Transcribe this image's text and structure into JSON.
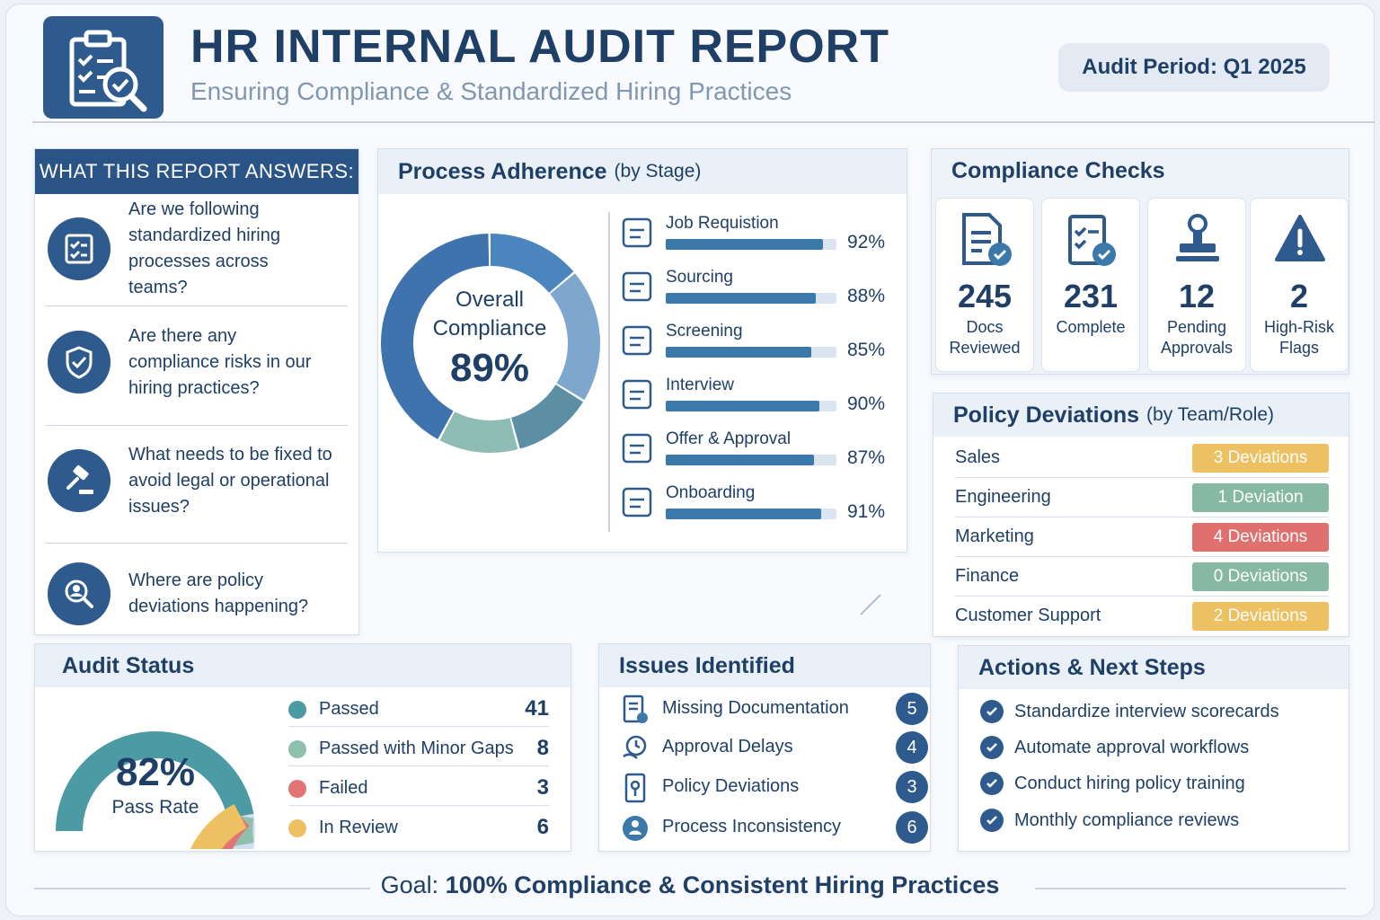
{
  "header": {
    "title": "HR INTERNAL AUDIT REPORT",
    "subtitle": "Ensuring Compliance & Standardized Hiring Practices",
    "period": "Audit Period: Q1 2025"
  },
  "questions": {
    "heading": "WHAT THIS REPORT ANSWERS:",
    "items": [
      {
        "text": "Are we following standardized hiring processes across teams?",
        "icon": "checklist-icon"
      },
      {
        "text": "Are there any compliance risks in our hiring practices?",
        "icon": "shield-check-icon"
      },
      {
        "text": "What needs to be fixed to avoid legal or operational issues?",
        "icon": "gavel-icon"
      },
      {
        "text": "Where are policy deviations happening?",
        "icon": "magnifier-person-icon"
      }
    ]
  },
  "process": {
    "title": "Process Adherence",
    "subtitle": "(by Stage)",
    "overall_label_1": "Overall",
    "overall_label_2": "Compliance",
    "overall_value": "89%"
  },
  "checks": {
    "title": "Compliance Checks",
    "items": [
      {
        "value": "245",
        "label_1": "Docs",
        "label_2": "Reviewed",
        "icon": "document-check-icon"
      },
      {
        "value": "231",
        "label_1": "Complete",
        "label_2": "",
        "icon": "checklist-check-icon"
      },
      {
        "value": "12",
        "label_1": "Pending",
        "label_2": "Approvals",
        "icon": "stamp-icon"
      },
      {
        "value": "2",
        "label_1": "High-Risk",
        "label_2": "Flags",
        "icon": "warning-icon"
      }
    ]
  },
  "deviations": {
    "title": "Policy Deviations",
    "subtitle": "(by Team/Role)",
    "rows": [
      {
        "team": "Sales",
        "badge": "3 Deviations",
        "color": "#edc062"
      },
      {
        "team": "Engineering",
        "badge": "1 Deviation",
        "color": "#87b8a4"
      },
      {
        "team": "Marketing",
        "badge": "4 Deviations",
        "color": "#e0706e"
      },
      {
        "team": "Finance",
        "badge": "0 Deviations",
        "color": "#87b8a4"
      },
      {
        "team": "Customer Support",
        "badge": "2 Deviations",
        "color": "#edc062"
      }
    ]
  },
  "audit_status": {
    "title": "Audit Status",
    "rate_value": "82%",
    "rate_label": "Pass Rate"
  },
  "issues": {
    "title": "Issues Identified",
    "items": [
      {
        "label": "Missing Documentation",
        "count": "5",
        "icon": "document-list-icon"
      },
      {
        "label": "Approval Delays",
        "count": "4",
        "icon": "clock-hand-icon"
      },
      {
        "label": "Policy Deviations",
        "count": "3",
        "icon": "policy-icon"
      },
      {
        "label": "Process Inconsistency",
        "count": "6",
        "icon": "people-gear-icon"
      }
    ]
  },
  "actions": {
    "title": "Actions & Next Steps",
    "items": [
      "Standardize interview scorecards",
      "Automate approval workflows",
      "Conduct hiring policy training",
      "Monthly compliance reviews"
    ]
  },
  "footer": {
    "goal_prefix": "Goal: ",
    "goal_text": "100% Compliance & Consistent Hiring Practices"
  },
  "chart_data": [
    {
      "type": "bar",
      "title": "Process Adherence (by Stage)",
      "categories": [
        "Job Requistion",
        "Sourcing",
        "Screening",
        "Interview",
        "Offer & Approval",
        "Onboarding"
      ],
      "values": [
        92,
        88,
        85,
        90,
        87,
        91
      ],
      "value_labels": [
        "92%",
        "88%",
        "85%",
        "90%",
        "87%",
        "91%"
      ],
      "orientation": "horizontal",
      "xlim": [
        0,
        100
      ]
    },
    {
      "type": "pie",
      "title": "Overall Compliance",
      "style": "donut",
      "value": 89,
      "segment_colors": [
        "#4a86bd",
        "#7fa6cc",
        "#5c8fa4",
        "#8fbcb4",
        "#3f73ad"
      ]
    },
    {
      "type": "pie",
      "title": "Audit Status",
      "style": "semi-donut",
      "categories": [
        "Passed",
        "Passed with Minor Gaps",
        "Failed",
        "In Review"
      ],
      "values": [
        41,
        8,
        3,
        6
      ],
      "colors": [
        "#4c9aa4",
        "#8fc0ad",
        "#e27573",
        "#edc062"
      ],
      "pass_rate": 82
    }
  ]
}
